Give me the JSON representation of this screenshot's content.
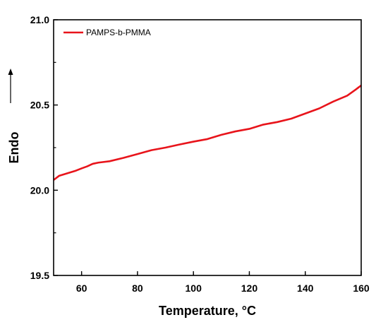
{
  "chart_data": {
    "type": "line",
    "xlabel": "Temperature, °C",
    "ylabel": "Endo",
    "xlim": [
      50,
      160
    ],
    "ylim": [
      19.5,
      21.0
    ],
    "x_ticks": [
      60,
      80,
      100,
      120,
      140,
      160
    ],
    "y_ticks": [
      "19.5",
      "20.0",
      "20.5",
      "21.0"
    ],
    "grid": false,
    "legend_position": "top-left",
    "y_arrow": "up",
    "series": [
      {
        "name": "PAMPS-b-PMMA",
        "color": "#e8141b",
        "x": [
          50,
          52,
          55,
          58,
          60,
          62,
          64,
          66,
          70,
          75,
          80,
          85,
          90,
          95,
          100,
          105,
          110,
          115,
          120,
          125,
          130,
          135,
          140,
          145,
          150,
          155,
          158,
          160
        ],
        "y": [
          20.06,
          20.085,
          20.1,
          20.115,
          20.128,
          20.14,
          20.155,
          20.162,
          20.17,
          20.19,
          20.212,
          20.235,
          20.25,
          20.268,
          20.285,
          20.3,
          20.325,
          20.345,
          20.36,
          20.385,
          20.4,
          20.42,
          20.45,
          20.48,
          20.52,
          20.555,
          20.59,
          20.615
        ]
      }
    ]
  }
}
